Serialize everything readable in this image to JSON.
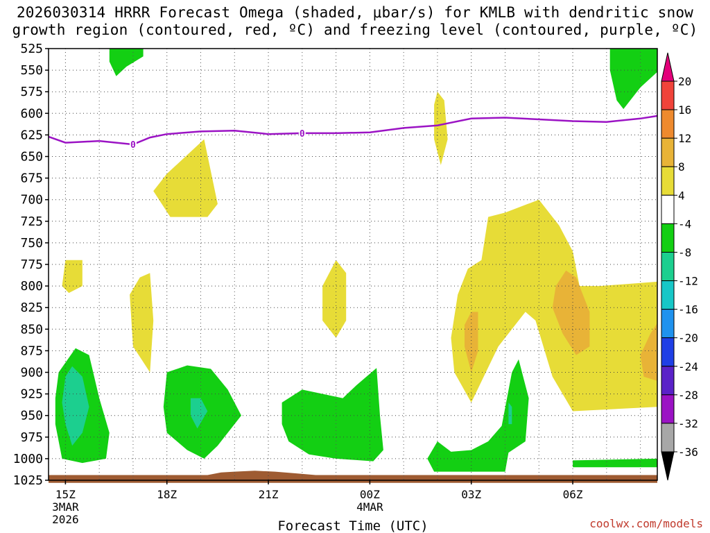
{
  "title": {
    "line1": "2026030314 HRRR Forecast Omega (shaded, μbar/s) for KMLB with dendritic snow",
    "line2": "growth region (contoured, red, ºC) and freezing level (contoured, purple, ºC)"
  },
  "credit": "coolwx.com/models",
  "chart_data": {
    "type": "contour",
    "xlabel": "Forecast Time (UTC)",
    "ylabel": "",
    "x_unit": "hours since 2026-03-03 14Z",
    "xlim": [
      0.5,
      18.5
    ],
    "ylim": [
      525,
      1025
    ],
    "y_ticks": [
      525,
      550,
      575,
      600,
      625,
      650,
      675,
      700,
      725,
      750,
      775,
      800,
      825,
      850,
      875,
      900,
      925,
      950,
      975,
      1000,
      1025
    ],
    "x_ticks": [
      {
        "x": 1,
        "label": "15Z",
        "sub": [
          "3MAR",
          "2026"
        ]
      },
      {
        "x": 4,
        "label": "18Z",
        "sub": []
      },
      {
        "x": 7,
        "label": "21Z",
        "sub": []
      },
      {
        "x": 10,
        "label": "00Z",
        "sub": [
          "4MAR"
        ]
      },
      {
        "x": 13,
        "label": "03Z",
        "sub": []
      },
      {
        "x": 16,
        "label": "06Z",
        "sub": []
      }
    ],
    "colorbar": {
      "labels": [
        "20",
        "16",
        "12",
        "8",
        "4",
        "-4",
        "-8",
        "-12",
        "-16",
        "-20",
        "-24",
        "-28",
        "-32",
        "-36"
      ],
      "colors": [
        "#e3007a",
        "#f0433a",
        "#ee8a2e",
        "#e8b337",
        "#e7dc37",
        "#ffffff",
        "#13cf13",
        "#1ccf8f",
        "#17c7c7",
        "#1f92ee",
        "#1f3fe6",
        "#5a22c8",
        "#9b13c4",
        "#a7a7a7",
        "#000000"
      ]
    },
    "freezing_level": {
      "label": "0",
      "points": [
        [
          0.5,
          627
        ],
        [
          1.0,
          634
        ],
        [
          1.5,
          633
        ],
        [
          2.0,
          632
        ],
        [
          3.0,
          636
        ],
        [
          3.5,
          628
        ],
        [
          4.0,
          624
        ],
        [
          5.0,
          621
        ],
        [
          6.0,
          620
        ],
        [
          7.0,
          624
        ],
        [
          8.0,
          623
        ],
        [
          9.0,
          623
        ],
        [
          10.0,
          622
        ],
        [
          11.0,
          617
        ],
        [
          12.0,
          614
        ],
        [
          13.0,
          606
        ],
        [
          14.0,
          605
        ],
        [
          15.0,
          607
        ],
        [
          16.0,
          609
        ],
        [
          17.0,
          610
        ],
        [
          18.0,
          606
        ],
        [
          18.5,
          603
        ]
      ]
    },
    "omega_regions": [
      {
        "value_range": "-8 to -4",
        "color": "#13cf13",
        "points": [
          [
            2.3,
            525
          ],
          [
            3.3,
            525
          ],
          [
            3.3,
            534
          ],
          [
            2.8,
            546
          ],
          [
            2.5,
            557
          ],
          [
            2.3,
            540
          ]
        ]
      },
      {
        "value_range": "-8 to -4",
        "color": "#13cf13",
        "points": [
          [
            17.1,
            525
          ],
          [
            18.5,
            525
          ],
          [
            18.5,
            552
          ],
          [
            18.0,
            570
          ],
          [
            17.5,
            595
          ],
          [
            17.3,
            585
          ],
          [
            17.1,
            550
          ]
        ]
      },
      {
        "value_range": "4 to 8",
        "color": "#e7dc37",
        "points": [
          [
            12.0,
            575
          ],
          [
            12.2,
            585
          ],
          [
            12.3,
            630
          ],
          [
            12.1,
            660
          ],
          [
            11.9,
            630
          ],
          [
            11.9,
            590
          ]
        ]
      },
      {
        "value_range": "4 to 8",
        "color": "#e7dc37",
        "points": [
          [
            4.0,
            670
          ],
          [
            5.1,
            630
          ],
          [
            5.5,
            705
          ],
          [
            5.2,
            720
          ],
          [
            4.1,
            720
          ],
          [
            3.6,
            690
          ]
        ]
      },
      {
        "value_range": "4 to 8",
        "color": "#e7dc37",
        "points": [
          [
            1.0,
            770
          ],
          [
            1.5,
            770
          ],
          [
            1.5,
            800
          ],
          [
            1.1,
            808
          ],
          [
            0.9,
            800
          ]
        ]
      },
      {
        "value_range": "4 to 8",
        "color": "#e7dc37",
        "points": [
          [
            3.2,
            790
          ],
          [
            3.5,
            785
          ],
          [
            3.6,
            840
          ],
          [
            3.5,
            900
          ],
          [
            3.0,
            870
          ],
          [
            2.9,
            810
          ]
        ]
      },
      {
        "value_range": "4 to 8",
        "color": "#e7dc37",
        "points": [
          [
            9.0,
            770
          ],
          [
            9.3,
            785
          ],
          [
            9.3,
            840
          ],
          [
            9.0,
            860
          ],
          [
            8.6,
            840
          ],
          [
            8.6,
            800
          ]
        ]
      },
      {
        "value_range": "4 to 8",
        "color": "#e7dc37",
        "points": [
          [
            12.9,
            780
          ],
          [
            13.3,
            770
          ],
          [
            13.5,
            720
          ],
          [
            14.0,
            715
          ],
          [
            15.0,
            700
          ],
          [
            15.6,
            730
          ],
          [
            16.0,
            760
          ],
          [
            16.2,
            800
          ],
          [
            16.8,
            800
          ],
          [
            18.5,
            795
          ],
          [
            18.5,
            940
          ],
          [
            16.0,
            945
          ],
          [
            15.4,
            905
          ],
          [
            14.9,
            840
          ],
          [
            14.6,
            830
          ],
          [
            14.4,
            840
          ],
          [
            13.8,
            870
          ],
          [
            13.0,
            935
          ],
          [
            12.5,
            900
          ],
          [
            12.4,
            860
          ],
          [
            12.6,
            810
          ]
        ]
      },
      {
        "value_range": "8 to 12",
        "color": "#e8b337",
        "points": [
          [
            15.5,
            800
          ],
          [
            15.8,
            782
          ],
          [
            16.1,
            790
          ],
          [
            16.5,
            830
          ],
          [
            16.5,
            870
          ],
          [
            16.1,
            880
          ],
          [
            15.7,
            855
          ],
          [
            15.4,
            825
          ]
        ]
      },
      {
        "value_range": "8 to 12",
        "color": "#e8b337",
        "points": [
          [
            13.0,
            830
          ],
          [
            13.2,
            830
          ],
          [
            13.2,
            875
          ],
          [
            13.0,
            900
          ],
          [
            12.8,
            870
          ],
          [
            12.8,
            845
          ]
        ]
      },
      {
        "value_range": "8 to 12",
        "color": "#e8b337",
        "points": [
          [
            18.5,
            843
          ],
          [
            18.5,
            910
          ],
          [
            18.1,
            905
          ],
          [
            18.0,
            880
          ],
          [
            18.3,
            855
          ]
        ]
      },
      {
        "value_range": "-8 to -4",
        "color": "#13cf13",
        "points": [
          [
            0.8,
            900
          ],
          [
            1.3,
            872
          ],
          [
            1.7,
            880
          ],
          [
            2.0,
            930
          ],
          [
            2.3,
            970
          ],
          [
            2.2,
            1000
          ],
          [
            1.5,
            1005
          ],
          [
            0.9,
            1000
          ],
          [
            0.7,
            960
          ],
          [
            0.7,
            930
          ]
        ]
      },
      {
        "value_range": "-12 to -8",
        "color": "#1ccf8f",
        "points": [
          [
            1.2,
            893
          ],
          [
            1.5,
            905
          ],
          [
            1.7,
            940
          ],
          [
            1.5,
            970
          ],
          [
            1.2,
            985
          ],
          [
            1.0,
            960
          ],
          [
            0.9,
            935
          ],
          [
            1.0,
            905
          ]
        ]
      },
      {
        "value_range": "-8 to -4",
        "color": "#13cf13",
        "points": [
          [
            4.0,
            900
          ],
          [
            4.6,
            892
          ],
          [
            5.3,
            896
          ],
          [
            5.8,
            920
          ],
          [
            6.2,
            950
          ],
          [
            5.5,
            985
          ],
          [
            5.1,
            1000
          ],
          [
            4.6,
            990
          ],
          [
            4.0,
            970
          ],
          [
            3.9,
            940
          ]
        ]
      },
      {
        "value_range": "-12 to -8",
        "color": "#1ccf8f",
        "points": [
          [
            4.7,
            930
          ],
          [
            5.0,
            930
          ],
          [
            5.2,
            945
          ],
          [
            4.9,
            965
          ],
          [
            4.7,
            950
          ]
        ]
      },
      {
        "value_range": "-8 to -4",
        "color": "#13cf13",
        "points": [
          [
            7.4,
            935
          ],
          [
            8.0,
            920
          ],
          [
            9.2,
            930
          ],
          [
            9.6,
            915
          ],
          [
            10.2,
            895
          ],
          [
            10.3,
            950
          ],
          [
            10.4,
            990
          ],
          [
            10.1,
            1003
          ],
          [
            9.0,
            1000
          ],
          [
            8.2,
            995
          ],
          [
            7.6,
            980
          ],
          [
            7.4,
            960
          ]
        ]
      },
      {
        "value_range": "-8 to -4",
        "color": "#13cf13",
        "points": [
          [
            12.0,
            980
          ],
          [
            12.4,
            992
          ],
          [
            13.0,
            990
          ],
          [
            13.5,
            980
          ],
          [
            13.9,
            962
          ],
          [
            14.2,
            900
          ],
          [
            14.4,
            885
          ],
          [
            14.7,
            930
          ],
          [
            14.6,
            980
          ],
          [
            14.1,
            993
          ],
          [
            14.0,
            1015
          ],
          [
            11.9,
            1015
          ],
          [
            11.7,
            1000
          ]
        ]
      },
      {
        "value_range": "-12 to -8",
        "color": "#1ccf8f",
        "points": [
          [
            14.1,
            935
          ],
          [
            14.2,
            940
          ],
          [
            14.2,
            960
          ],
          [
            14.1,
            960
          ]
        ]
      },
      {
        "value_range": "-8 to -4",
        "color": "#13cf13",
        "points": [
          [
            16.0,
            1002
          ],
          [
            18.5,
            1000
          ],
          [
            18.5,
            1010
          ],
          [
            16.0,
            1010
          ]
        ]
      }
    ],
    "terrain": {
      "color": "#9e5b32",
      "points": [
        [
          0.5,
          1019
        ],
        [
          5.2,
          1019
        ],
        [
          5.6,
          1016
        ],
        [
          6.0,
          1015
        ],
        [
          6.6,
          1014
        ],
        [
          7.2,
          1015
        ],
        [
          7.8,
          1017
        ],
        [
          8.4,
          1019
        ],
        [
          18.5,
          1019
        ],
        [
          18.5,
          1028
        ],
        [
          0.5,
          1028
        ]
      ]
    }
  }
}
